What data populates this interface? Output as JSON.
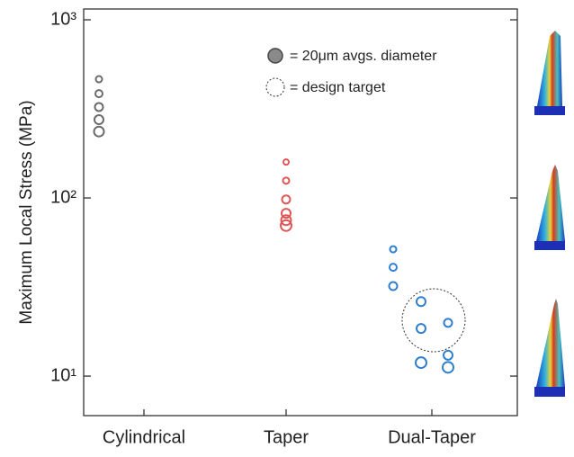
{
  "chart_data": {
    "type": "scatter",
    "y_label": "Maximum Local Stress (MPa)",
    "categories": [
      "Cylindrical",
      "Taper",
      "Dual-Taper"
    ],
    "values": [
      [
        464,
        385,
        324,
        275,
        236
      ],
      [
        159,
        125,
        98,
        82,
        75,
        70
      ],
      [
        51.5,
        40.8,
        32,
        26.2,
        18.5,
        11.9,
        19.9,
        13.1,
        11.2
      ]
    ],
    "colors": [
      "#6b6b6b",
      "#e05555",
      "#2f7fd0"
    ],
    "log_y": true,
    "ylim": [
      6,
      1150
    ],
    "yticks": [
      {
        "value": 10,
        "label": "10¹"
      },
      {
        "value": 100,
        "label": "10²"
      },
      {
        "value": 1000,
        "label": "10³"
      }
    ],
    "legend_size_text": "= 20μm avgs. diameter",
    "legend_target_text": "= design target"
  }
}
